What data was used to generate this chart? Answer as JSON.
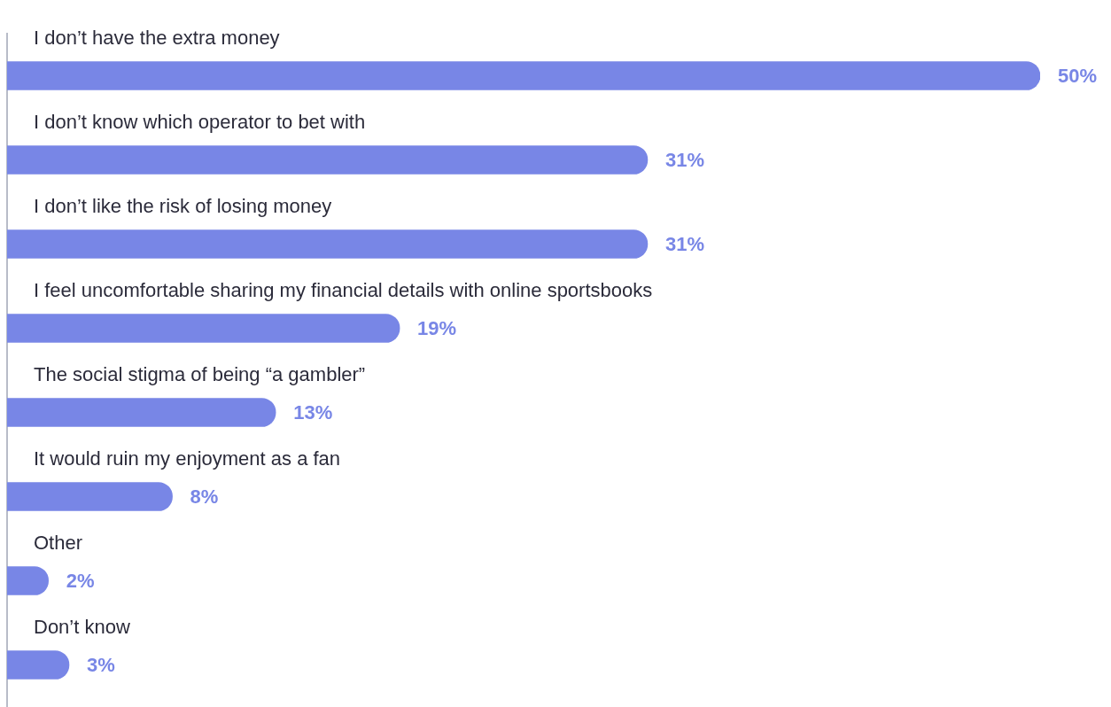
{
  "chart_data": {
    "type": "bar",
    "orientation": "horizontal",
    "categories": [
      "I don’t have the extra money",
      "I don’t know which operator to bet with",
      "I don’t like the risk of losing money",
      "I feel uncomfortable sharing my financial details with online sportsbooks",
      "The social stigma of being “a gambler”",
      "It would ruin my enjoyment as a fan",
      "Other",
      "Don’t know"
    ],
    "values": [
      50,
      31,
      31,
      19,
      13,
      8,
      2,
      3
    ],
    "value_labels": [
      "50%",
      "31%",
      "31%",
      "19%",
      "13%",
      "8%",
      "2%",
      "3%"
    ],
    "color": "#7886e6"
  }
}
